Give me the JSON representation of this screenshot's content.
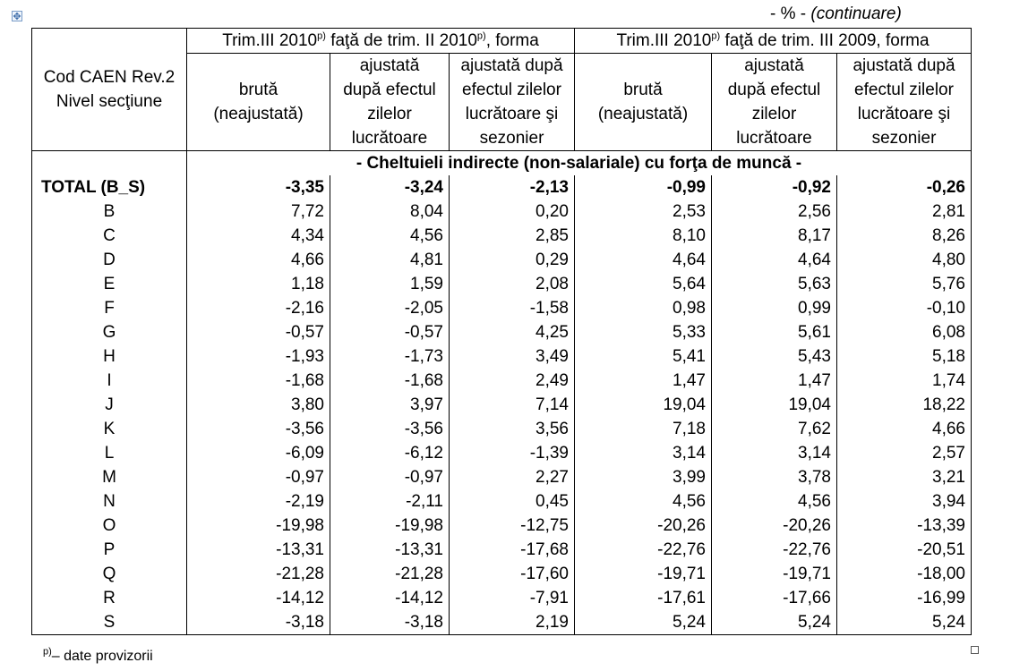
{
  "unit_note": {
    "prefix": "- % - ",
    "continuation": "(continuare)"
  },
  "header": {
    "code_col": {
      "line1": "Cod CAEN Rev.2",
      "line2": "Nivel secţiune"
    },
    "group1": {
      "pre": "Trim.III 2010",
      "sup": "p)",
      "mid": " faţă de trim. II 2010",
      "sup2": "p)",
      "post": ", forma"
    },
    "group2": {
      "pre": "Trim.III 2010",
      "sup": "p)",
      "post": " faţă de trim. III 2009, forma"
    },
    "sub": [
      {
        "l1": "brută",
        "l2": "(neajustată)"
      },
      {
        "l1": "ajustată",
        "l2": "după efectul",
        "l3": "zilelor",
        "l4": "lucrătoare"
      },
      {
        "l1": "ajustată după",
        "l2": "efectul zilelor",
        "l3": "lucrătoare şi",
        "l4": "sezonier"
      },
      {
        "l1": "brută",
        "l2": "(neajustată)"
      },
      {
        "l1": "ajustată",
        "l2": "după efectul",
        "l3": "zilelor",
        "l4": "lucrătoare"
      },
      {
        "l1": "ajustată după",
        "l2": "efectul zilelor",
        "l3": "lucrătoare şi",
        "l4": "sezonier"
      }
    ]
  },
  "section_title": "- Cheltuieli indirecte (non-salariale) cu forţa de muncă -",
  "rows": [
    {
      "code": "TOTAL (B_S)",
      "v": [
        "-3,35",
        "-3,24",
        "-2,13",
        "-0,99",
        "-0,92",
        "-0,26"
      ]
    },
    {
      "code": "B",
      "v": [
        "7,72",
        "8,04",
        "0,20",
        "2,53",
        "2,56",
        "2,81"
      ]
    },
    {
      "code": "C",
      "v": [
        "4,34",
        "4,56",
        "2,85",
        "8,10",
        "8,17",
        "8,26"
      ]
    },
    {
      "code": "D",
      "v": [
        "4,66",
        "4,81",
        "0,29",
        "4,64",
        "4,64",
        "4,80"
      ]
    },
    {
      "code": "E",
      "v": [
        "1,18",
        "1,59",
        "2,08",
        "5,64",
        "5,63",
        "5,76"
      ]
    },
    {
      "code": "F",
      "v": [
        "-2,16",
        "-2,05",
        "-1,58",
        "0,98",
        "0,99",
        "-0,10"
      ]
    },
    {
      "code": "G",
      "v": [
        "-0,57",
        "-0,57",
        "4,25",
        "5,33",
        "5,61",
        "6,08"
      ]
    },
    {
      "code": "H",
      "v": [
        "-1,93",
        "-1,73",
        "3,49",
        "5,41",
        "5,43",
        "5,18"
      ]
    },
    {
      "code": "I",
      "v": [
        "-1,68",
        "-1,68",
        "2,49",
        "1,47",
        "1,47",
        "1,74"
      ]
    },
    {
      "code": "J",
      "v": [
        "3,80",
        "3,97",
        "7,14",
        "19,04",
        "19,04",
        "18,22"
      ]
    },
    {
      "code": "K",
      "v": [
        "-3,56",
        "-3,56",
        "3,56",
        "7,18",
        "7,62",
        "4,66"
      ]
    },
    {
      "code": "L",
      "v": [
        "-6,09",
        "-6,12",
        "-1,39",
        "3,14",
        "3,14",
        "2,57"
      ]
    },
    {
      "code": "M",
      "v": [
        "-0,97",
        "-0,97",
        "2,27",
        "3,99",
        "3,78",
        "3,21"
      ]
    },
    {
      "code": "N",
      "v": [
        "-2,19",
        "-2,11",
        "0,45",
        "4,56",
        "4,56",
        "3,94"
      ]
    },
    {
      "code": "O",
      "v": [
        "-19,98",
        "-19,98",
        "-12,75",
        "-20,26",
        "-20,26",
        "-13,39"
      ]
    },
    {
      "code": "P",
      "v": [
        "-13,31",
        "-13,31",
        "-17,68",
        "-22,76",
        "-22,76",
        "-20,51"
      ]
    },
    {
      "code": "Q",
      "v": [
        "-21,28",
        "-21,28",
        "-17,60",
        "-19,71",
        "-19,71",
        "-18,00"
      ]
    },
    {
      "code": "R",
      "v": [
        "-14,12",
        "-14,12",
        "-7,91",
        "-17,61",
        "-17,66",
        "-16,99"
      ]
    },
    {
      "code": "S",
      "v": [
        "-3,18",
        "-3,18",
        "2,19",
        "5,24",
        "5,24",
        "5,24"
      ]
    }
  ],
  "footnote": {
    "sup": "p)",
    "text": "– date provizorii"
  }
}
